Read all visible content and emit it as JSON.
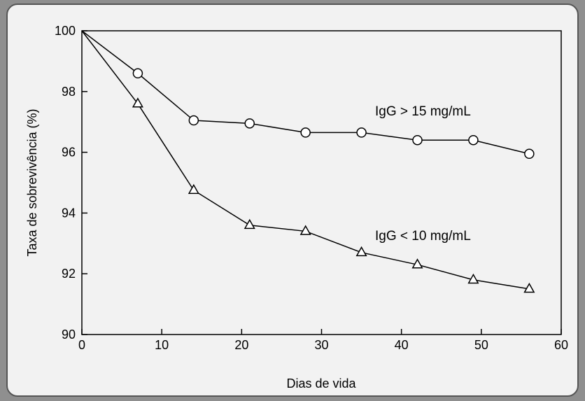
{
  "chart_data": {
    "type": "line",
    "title": "",
    "xlabel": "Dias de vida",
    "ylabel": "Taxa de sobrevivência (%)",
    "xlim": [
      0,
      60
    ],
    "ylim": [
      90,
      100
    ],
    "xticks": [
      0,
      10,
      20,
      30,
      40,
      50,
      60
    ],
    "yticks": [
      90,
      92,
      94,
      96,
      98,
      100
    ],
    "grid": false,
    "series": [
      {
        "name": "IgG > 15 mg/mL",
        "marker": "circle",
        "x": [
          0,
          7,
          14,
          21,
          28,
          35,
          42,
          49,
          56
        ],
        "y": [
          100,
          98.6,
          97.05,
          96.95,
          96.65,
          96.65,
          96.4,
          96.4,
          95.95
        ]
      },
      {
        "name": "IgG < 10 mg/mL",
        "marker": "triangle",
        "x": [
          0,
          7,
          14,
          21,
          28,
          35,
          42,
          49,
          56
        ],
        "y": [
          100,
          97.6,
          94.75,
          93.6,
          93.4,
          92.7,
          92.3,
          91.8,
          91.5
        ]
      }
    ],
    "annotations": [
      {
        "text": "IgG > 15 mg/mL",
        "series": 0
      },
      {
        "text": "IgG < 10 mg/mL",
        "series": 1
      }
    ]
  }
}
